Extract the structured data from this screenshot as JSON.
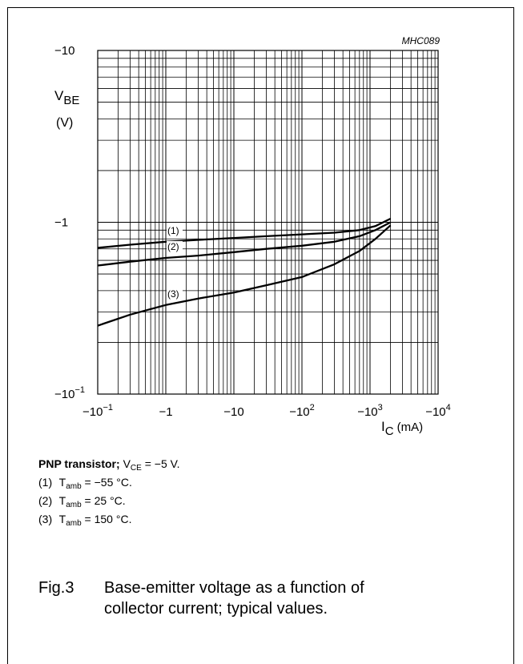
{
  "chart_data": {
    "type": "line",
    "code": "MHC089",
    "x_scale": "log",
    "y_scale": "log",
    "xlim": [
      -0.1,
      -10000
    ],
    "ylim": [
      -0.1,
      -10
    ],
    "x_ticks": [
      {
        "value": -0.1,
        "base": "−10",
        "exp": "−1"
      },
      {
        "value": -1,
        "base": "−1",
        "exp": ""
      },
      {
        "value": -10,
        "base": "−10",
        "exp": ""
      },
      {
        "value": -100,
        "base": "−10",
        "exp": "2"
      },
      {
        "value": -1000,
        "base": "−10",
        "exp": "3"
      },
      {
        "value": -10000,
        "base": "−10",
        "exp": "4"
      }
    ],
    "y_ticks": [
      {
        "value": -10,
        "base": "−10",
        "exp": ""
      },
      {
        "value": -1,
        "base": "−1",
        "exp": ""
      },
      {
        "value": -0.1,
        "base": "−10",
        "exp": "−1"
      }
    ],
    "ylabel": {
      "main": "V",
      "sub": "BE",
      "unit": "(V)"
    },
    "xlabel": {
      "main": "I",
      "sub": "C",
      "unit": "(mA)"
    },
    "grid": true,
    "series": [
      {
        "name": "(1)",
        "x": [
          -0.1,
          -0.3,
          -1,
          -3,
          -10,
          -30,
          -100,
          -300,
          -700,
          -1200,
          -2000
        ],
        "y": [
          -0.71,
          -0.74,
          -0.77,
          -0.79,
          -0.81,
          -0.83,
          -0.85,
          -0.87,
          -0.9,
          -0.95,
          -1.05
        ]
      },
      {
        "name": "(2)",
        "x": [
          -0.1,
          -0.3,
          -1,
          -3,
          -10,
          -30,
          -100,
          -300,
          -700,
          -1200,
          -2000
        ],
        "y": [
          -0.56,
          -0.59,
          -0.62,
          -0.64,
          -0.67,
          -0.7,
          -0.73,
          -0.77,
          -0.83,
          -0.9,
          -1.0
        ]
      },
      {
        "name": "(3)",
        "x": [
          -0.1,
          -0.3,
          -1,
          -3,
          -10,
          -30,
          -100,
          -300,
          -700,
          -1200,
          -2000
        ],
        "y": [
          -0.25,
          -0.29,
          -0.33,
          -0.36,
          -0.39,
          -0.43,
          -0.48,
          -0.57,
          -0.68,
          -0.8,
          -0.96
        ]
      }
    ]
  },
  "caption": {
    "title_bold": "PNP transistor;",
    "title_v": "V",
    "title_sub": "CE",
    "title_rest": " = −5 V.",
    "lines": [
      {
        "num": "(1)",
        "t": "T",
        "sub": "amb",
        "rest": " = −55 °C."
      },
      {
        "num": "(2)",
        "t": "T",
        "sub": "amb",
        "rest": " = 25 °C."
      },
      {
        "num": "(3)",
        "t": "T",
        "sub": "amb",
        "rest": " = 150 °C."
      }
    ]
  },
  "figure": {
    "number": "Fig.3",
    "text": "Base-emitter voltage as a function of collector current; typical values."
  }
}
